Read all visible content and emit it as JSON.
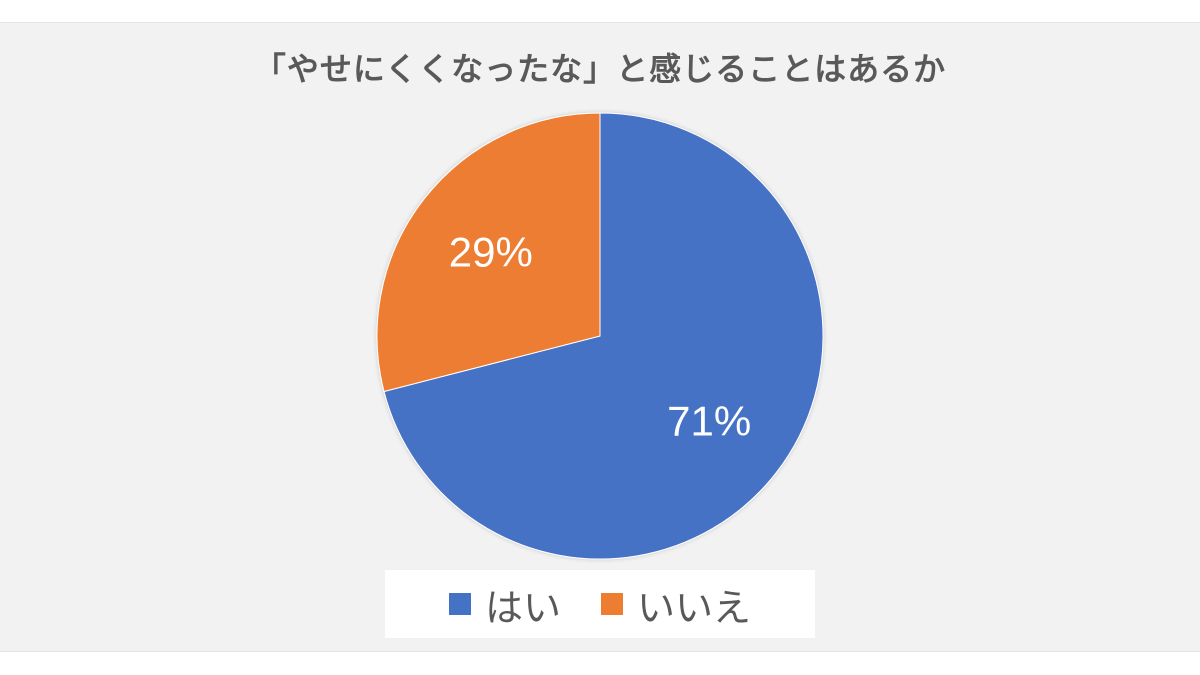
{
  "chart_data": {
    "type": "pie",
    "title": "「やせにくくなったな」と感じることはあるか",
    "categories": [
      "はい",
      "いいえ"
    ],
    "values": [
      71,
      29
    ],
    "data_labels": [
      "71%",
      "29%"
    ],
    "colors": [
      "#4472c4",
      "#ed7d31"
    ],
    "legend_position": "bottom",
    "start_angle": "top",
    "direction": "clockwise"
  }
}
